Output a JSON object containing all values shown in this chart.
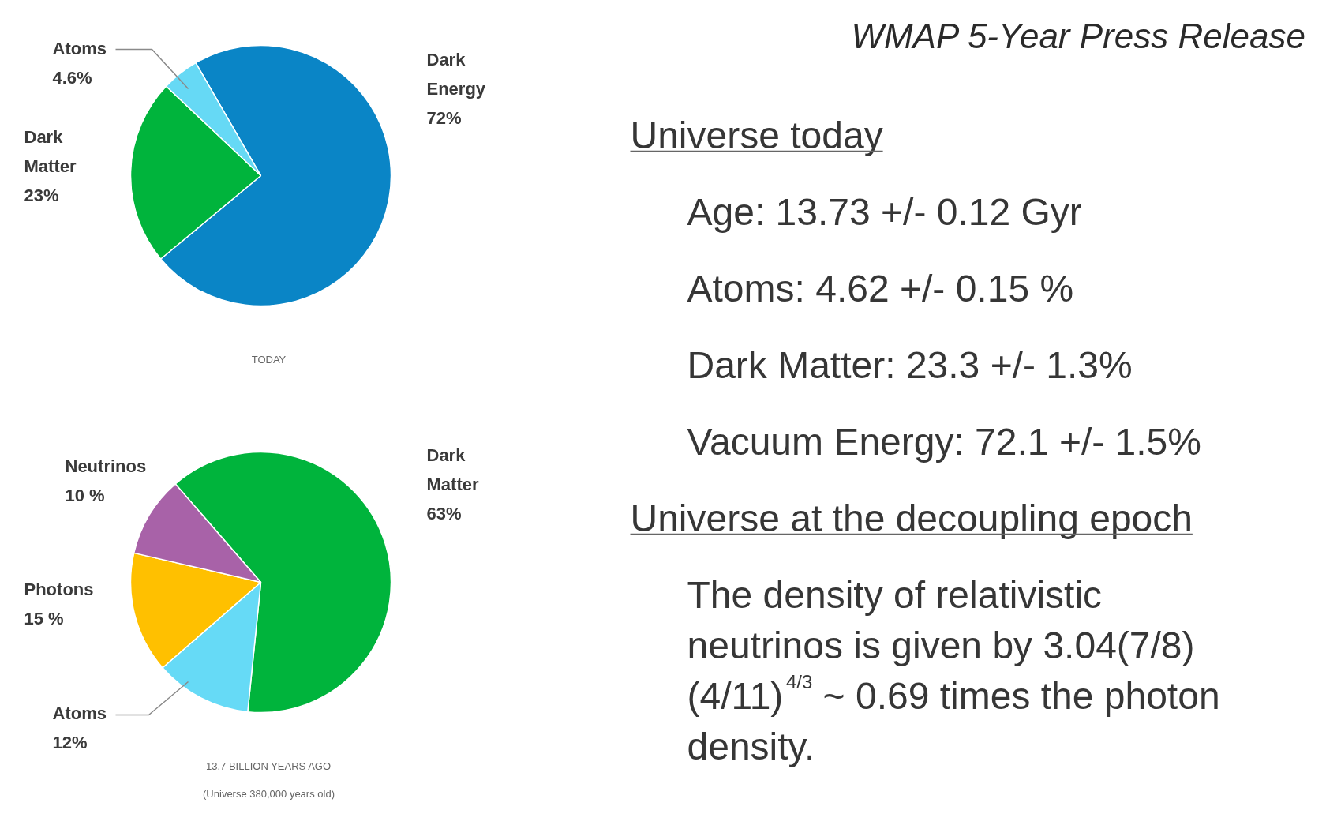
{
  "chart_data": [
    {
      "type": "pie",
      "categories": [
        "Dark Energy",
        "Dark Matter",
        "Atoms"
      ],
      "values": [
        72,
        23,
        4.6
      ],
      "colors": [
        "#0a85c6",
        "#00b43c",
        "#66d9f5"
      ],
      "value_labels": [
        "72%",
        "23%",
        "4.6%"
      ],
      "annotations": [
        "TODAY"
      ]
    },
    {
      "type": "pie",
      "categories": [
        "Dark Matter",
        "Atoms",
        "Photons",
        "Neutrinos"
      ],
      "values": [
        63,
        12,
        15,
        10
      ],
      "colors": [
        "#00b43c",
        "#66daf6",
        "#ffc000",
        "#a862a8"
      ],
      "value_labels": [
        "63%",
        "12%",
        "15 %",
        "10 %"
      ],
      "annotations": [
        "13.7 BILLION YEARS AGO",
        "(Universe 380,000 years old)"
      ]
    },
    {
      "type": "other",
      "title": "WMAP 5-Year Press Release",
      "annotations": [
        "Universe today",
        "Age: 13.73 +/- 0.12 Gyr",
        "Atoms: 4.62 +/- 0.15 %",
        "Dark Matter: 23.3 +/- 1.3%",
        "Vacuum Energy: 72.1 +/- 1.5%",
        "Universe at the decoupling epoch",
        "The density of relativistic neutrinos is given by 3.04(7/8) (4/11)$^{4/3}$ ~ 0.69 times the photon density."
      ]
    }
  ]
}
